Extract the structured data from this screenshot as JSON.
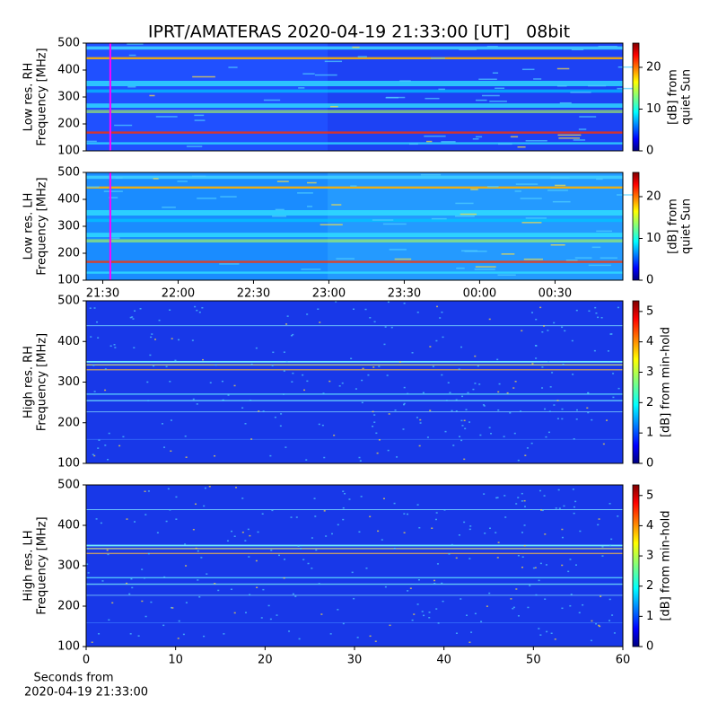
{
  "title": "IPRT/AMATERAS 2020-04-19 21:33:00 [UT]   08bit",
  "chart_data": [
    {
      "type": "heatmap",
      "ylabel": [
        "Low res. RH",
        "Frequency [MHz]"
      ],
      "ylim": [
        100,
        500
      ],
      "yticks": [
        100,
        200,
        300,
        400,
        500
      ],
      "xlim": [
        21.39,
        24.95
      ],
      "marker_x": 21.55,
      "marker_color": "#ff00ff",
      "colorbar_label": [
        "[dB] from",
        "quiet Sun"
      ],
      "clim": [
        0,
        25.8
      ],
      "cticks": [
        0,
        10,
        20
      ]
    },
    {
      "type": "heatmap",
      "ylabel": [
        "Low res. LH",
        "Frequency [MHz]"
      ],
      "ylim": [
        100,
        500
      ],
      "yticks": [
        100,
        200,
        300,
        400,
        500
      ],
      "xlim": [
        21.39,
        24.95
      ],
      "xticks": [
        {
          "value": 21.5,
          "label": "21:30"
        },
        {
          "value": 22,
          "label": "22:00"
        },
        {
          "value": 22.5,
          "label": "22:30"
        },
        {
          "value": 23,
          "label": "23:00"
        },
        {
          "value": 23.5,
          "label": "23:30"
        },
        {
          "value": 24,
          "label": "00:00"
        },
        {
          "value": 24.5,
          "label": "00:30"
        }
      ],
      "marker_x": 21.55,
      "marker_color": "#ff00ff",
      "colorbar_label": [
        "[dB] from",
        "quiet Sun"
      ],
      "clim": [
        0,
        25.8
      ],
      "cticks": [
        0,
        10,
        20
      ]
    },
    {
      "type": "heatmap",
      "ylabel": [
        "High res. RH",
        "Frequency [MHz]"
      ],
      "ylim": [
        100,
        500
      ],
      "yticks": [
        100,
        200,
        300,
        400,
        500
      ],
      "xlim": [
        0,
        60
      ],
      "colorbar_label": [
        "[dB] from min-hold"
      ],
      "clim": [
        0,
        5.35
      ],
      "cticks": [
        0,
        1,
        2,
        3,
        4,
        5
      ]
    },
    {
      "type": "heatmap",
      "ylabel": [
        "High res. LH",
        "Frequency [MHz]"
      ],
      "ylim": [
        100,
        500
      ],
      "yticks": [
        100,
        200,
        300,
        400,
        500
      ],
      "xlim": [
        0,
        60
      ],
      "xticks": [
        0,
        10,
        20,
        30,
        40,
        50,
        60
      ],
      "xlabel": [
        "Seconds from",
        "2020-04-19 21:33:00"
      ],
      "colorbar_label": [
        "[dB] from min-hold"
      ],
      "clim": [
        0,
        5.35
      ],
      "cticks": [
        0,
        1,
        2,
        3,
        4,
        5
      ]
    }
  ]
}
